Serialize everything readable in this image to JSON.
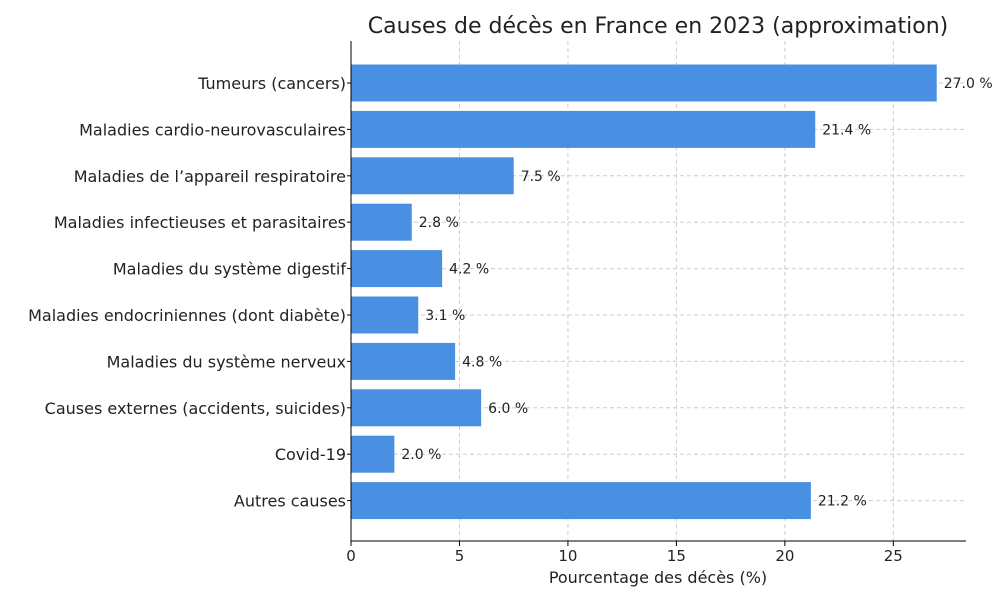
{
  "chart_data": {
    "type": "bar",
    "orientation": "horizontal",
    "title": "Causes de décès en France en 2023 (approximation)",
    "xlabel": "Pourcentage des décès (%)",
    "ylabel": "",
    "xlim": [
      0,
      28.35
    ],
    "x_ticks": [
      0,
      5,
      10,
      15,
      20,
      25
    ],
    "grid": true,
    "bar_color": "#4a90e2",
    "value_suffix": " %",
    "categories": [
      "Tumeurs (cancers)",
      "Maladies cardio-neurovasculaires",
      "Maladies de l’appareil respiratoire",
      "Maladies infectieuses et parasitaires",
      "Maladies du système digestif",
      "Maladies endocriniennes (dont diabète)",
      "Maladies du système nerveux",
      "Causes externes (accidents, suicides)",
      "Covid-19",
      "Autres causes"
    ],
    "values": [
      27.0,
      21.4,
      7.5,
      2.8,
      4.2,
      3.1,
      4.8,
      6.0,
      2.0,
      21.2
    ],
    "value_labels": [
      "27.0 %",
      "21.4 %",
      "7.5 %",
      "2.8 %",
      "4.2 %",
      "3.1 %",
      "4.8 %",
      "6.0 %",
      "2.0 %",
      "21.2 %"
    ]
  }
}
